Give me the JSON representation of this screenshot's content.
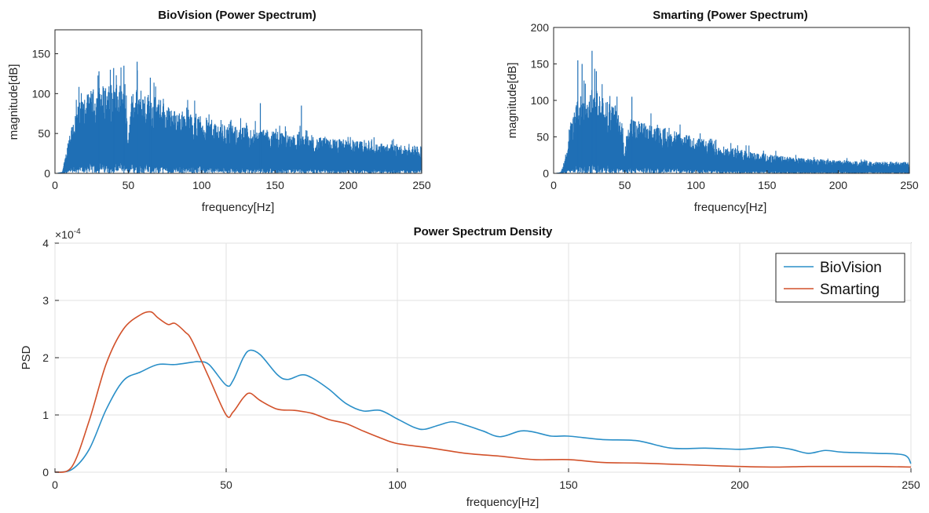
{
  "colors": {
    "blue": "#1f6fb5",
    "orange": "#d2512a",
    "axis": "#262626"
  },
  "chart_data": [
    {
      "type": "area",
      "title": "BioVision (Power Spectrum)",
      "xlabel": "frequency[Hz]",
      "ylabel": "magnitude[dB]",
      "xlim": [
        0,
        250
      ],
      "ylim": [
        0,
        180
      ],
      "xticks": [
        0,
        50,
        100,
        150,
        200,
        250
      ],
      "yticks": [
        0,
        50,
        100,
        150
      ],
      "envelope_x": [
        0,
        5,
        8,
        10,
        15,
        20,
        25,
        30,
        35,
        40,
        45,
        48,
        50,
        52,
        55,
        60,
        65,
        70,
        75,
        80,
        85,
        90,
        95,
        100,
        110,
        120,
        130,
        140,
        150,
        160,
        170,
        180,
        190,
        200,
        210,
        220,
        230,
        240,
        250
      ],
      "envelope_y": [
        0,
        2,
        30,
        55,
        85,
        95,
        105,
        110,
        112,
        112,
        110,
        100,
        40,
        100,
        108,
        105,
        100,
        95,
        90,
        80,
        80,
        78,
        75,
        72,
        65,
        60,
        58,
        55,
        55,
        52,
        48,
        45,
        44,
        42,
        40,
        38,
        37,
        36,
        35
      ],
      "peak_x": [
        30,
        40,
        47,
        56,
        65,
        140,
        168
      ],
      "peak_y": [
        128,
        132,
        135,
        140,
        120,
        88,
        85
      ]
    },
    {
      "type": "area",
      "title": "Smarting (Power Spectrum)",
      "xlabel": "frequency[Hz]",
      "ylabel": "magnitude[dB]",
      "xlim": [
        0,
        250
      ],
      "ylim": [
        0,
        200
      ],
      "xticks": [
        0,
        50,
        100,
        150,
        200,
        250
      ],
      "yticks": [
        0,
        50,
        100,
        150,
        200
      ],
      "envelope_x": [
        0,
        5,
        8,
        10,
        12,
        15,
        20,
        25,
        30,
        35,
        40,
        45,
        48,
        50,
        52,
        55,
        60,
        70,
        80,
        90,
        100,
        110,
        120,
        130,
        140,
        150,
        160,
        170,
        180,
        190,
        200,
        210,
        220,
        230,
        240,
        250
      ],
      "envelope_y": [
        0,
        2,
        20,
        40,
        70,
        95,
        110,
        115,
        115,
        105,
        95,
        85,
        70,
        30,
        72,
        75,
        72,
        65,
        62,
        55,
        50,
        45,
        38,
        33,
        30,
        27,
        24,
        22,
        20,
        19,
        18,
        17,
        17,
        16,
        16,
        15
      ],
      "peak_x": [
        17,
        20,
        27,
        30,
        55
      ],
      "peak_y": [
        155,
        150,
        168,
        140,
        105
      ]
    },
    {
      "type": "line",
      "title": "Power Spectrum Density",
      "xlabel": "frequency[Hz]",
      "ylabel": "PSD",
      "exponent_label": "×10",
      "exponent_power": "-4",
      "xlim": [
        0,
        250
      ],
      "ylim": [
        0,
        4
      ],
      "xticks": [
        0,
        50,
        100,
        150,
        200,
        250
      ],
      "yticks": [
        0,
        1,
        2,
        3,
        4
      ],
      "legend_position": "top-right",
      "series": [
        {
          "name": "BioVision",
          "color": "#2a8fc8",
          "x": [
            0,
            5,
            10,
            15,
            20,
            25,
            30,
            35,
            40,
            42,
            45,
            50,
            52,
            55,
            57,
            60,
            65,
            68,
            72,
            75,
            80,
            85,
            90,
            95,
            100,
            105,
            108,
            112,
            116,
            120,
            125,
            130,
            136,
            140,
            145,
            150,
            160,
            170,
            180,
            190,
            200,
            205,
            210,
            215,
            220,
            225,
            230,
            240,
            248,
            250
          ],
          "y": [
            0,
            0.05,
            0.4,
            1.1,
            1.6,
            1.75,
            1.88,
            1.88,
            1.92,
            1.93,
            1.88,
            1.52,
            1.6,
            2.0,
            2.13,
            2.05,
            1.7,
            1.62,
            1.7,
            1.65,
            1.45,
            1.2,
            1.07,
            1.08,
            0.93,
            0.78,
            0.75,
            0.82,
            0.88,
            0.82,
            0.72,
            0.62,
            0.72,
            0.7,
            0.63,
            0.63,
            0.57,
            0.55,
            0.42,
            0.42,
            0.4,
            0.42,
            0.44,
            0.4,
            0.33,
            0.38,
            0.35,
            0.33,
            0.3,
            0.15
          ]
        },
        {
          "name": "Smarting",
          "color": "#d2512a",
          "x": [
            0,
            5,
            10,
            15,
            20,
            25,
            28,
            30,
            33,
            35,
            38,
            40,
            45,
            50,
            52,
            55,
            57,
            60,
            65,
            70,
            75,
            80,
            85,
            90,
            95,
            100,
            110,
            120,
            130,
            140,
            150,
            160,
            170,
            180,
            190,
            200,
            210,
            220,
            230,
            240,
            250
          ],
          "y": [
            0,
            0.1,
            0.9,
            1.9,
            2.5,
            2.75,
            2.8,
            2.7,
            2.58,
            2.6,
            2.45,
            2.3,
            1.65,
            1.0,
            1.05,
            1.3,
            1.38,
            1.25,
            1.1,
            1.08,
            1.03,
            0.92,
            0.85,
            0.72,
            0.6,
            0.5,
            0.42,
            0.33,
            0.28,
            0.22,
            0.22,
            0.17,
            0.16,
            0.14,
            0.12,
            0.1,
            0.09,
            0.1,
            0.1,
            0.1,
            0.09
          ]
        }
      ]
    }
  ]
}
